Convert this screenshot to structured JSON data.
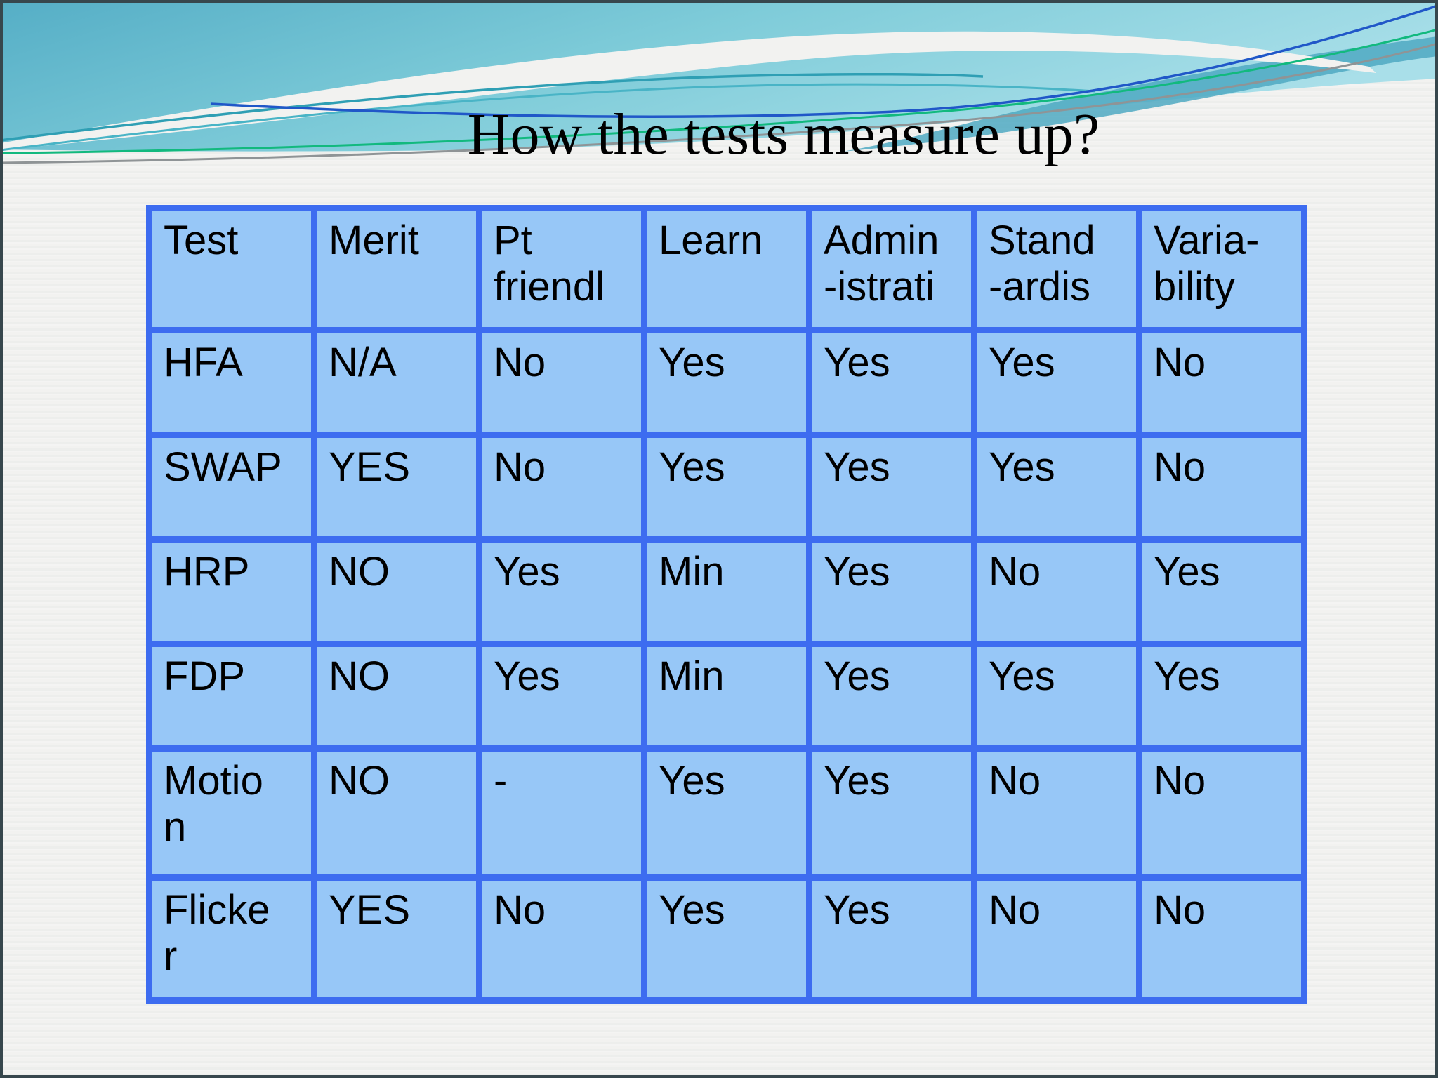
{
  "slide": {
    "title": "How the tests measure up?"
  },
  "table": {
    "headers": [
      "Test",
      "Merit",
      "Pt\nfriendl",
      "Learn",
      "Admin\n-istrati",
      "Stand\n-ardis",
      "Varia-\nbility"
    ],
    "rows": [
      [
        "HFA",
        "N/A",
        "No",
        "Yes",
        "Yes",
        "Yes",
        "No"
      ],
      [
        "SWAP",
        "YES",
        "No",
        "Yes",
        "Yes",
        "Yes",
        "No"
      ],
      [
        "HRP",
        "NO",
        "Yes",
        "Min",
        "Yes",
        "No",
        "Yes"
      ],
      [
        "FDP",
        "NO",
        "Yes",
        "Min",
        "Yes",
        "Yes",
        "Yes"
      ],
      [
        "Motio\nn",
        "NO",
        "-",
        "Yes",
        "Yes",
        "No",
        "No"
      ],
      [
        "Flicke\nr",
        "YES",
        "No",
        "Yes",
        "Yes",
        "No",
        "No"
      ]
    ]
  },
  "colors": {
    "slide_background": "#f2f2f0",
    "table_cell_fill": "#97c7f7",
    "table_border": "#3d6cf0",
    "wave_teal_dark": "#55aec6",
    "wave_teal_light": "#a9dfe9",
    "wave_band_teal": "#4fa9c2",
    "accent_line_teal": "#2f9fb4",
    "accent_line_blue": "#2057c8",
    "accent_line_green": "#12b97e",
    "accent_line_gray": "#8f9496",
    "title_text": "#000000"
  }
}
